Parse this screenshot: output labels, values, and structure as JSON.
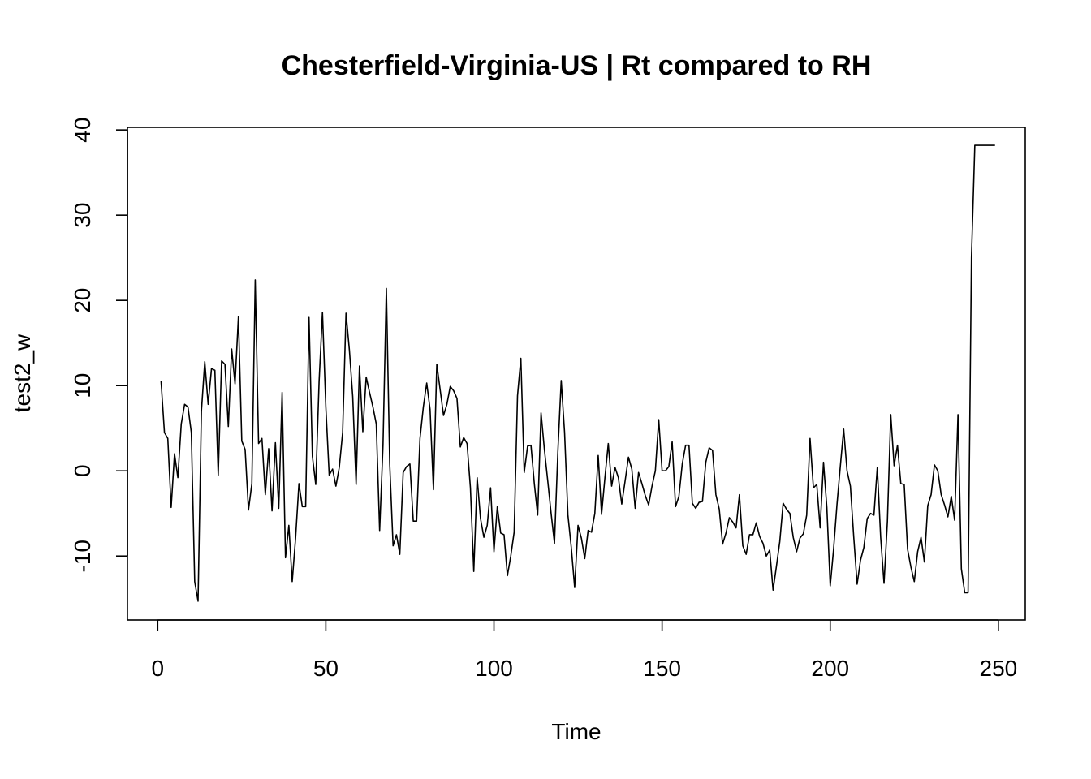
{
  "chart_data": {
    "type": "line",
    "title": "Chesterfield-Virginia-US | Rt compared to RH",
    "xlabel": "Time",
    "ylabel": "test2_w",
    "xlim": [
      -9,
      258
    ],
    "ylim": [
      -17.5,
      40.3
    ],
    "x_ticks": [
      0,
      50,
      100,
      150,
      200,
      250
    ],
    "x_tick_labels": [
      "0",
      "50",
      "100",
      "150",
      "200",
      "250"
    ],
    "y_ticks": [
      -10,
      0,
      10,
      20,
      30,
      40
    ],
    "y_tick_labels": [
      "-10",
      "0",
      "10",
      "20",
      "30",
      "40"
    ],
    "grid": false,
    "legend": "none",
    "series": [
      {
        "x_start": 1,
        "values": [
          10.5,
          4.5,
          3.8,
          -4.3,
          2.0,
          -0.8,
          5.5,
          7.8,
          7.5,
          4.5,
          -13.0,
          -15.3,
          7.0,
          12.8,
          7.8,
          12.0,
          11.8,
          -0.5,
          12.9,
          12.5,
          5.2,
          14.3,
          10.2,
          18.1,
          3.5,
          2.5,
          -4.6,
          -1.5,
          22.4,
          3.2,
          3.8,
          -2.8,
          2.6,
          -4.7,
          3.3,
          -4.4,
          9.2,
          -10.2,
          -6.4,
          -13.0,
          -7.9,
          -1.5,
          -4.2,
          -4.2,
          18.0,
          1.7,
          -1.6,
          10.5,
          18.6,
          7.5,
          -0.5,
          0.2,
          -1.8,
          0.4,
          4.5,
          18.5,
          14.2,
          8.7,
          -1.6,
          12.3,
          4.6,
          11.0,
          9.2,
          7.5,
          5.5,
          -7.0,
          3.0,
          21.4,
          0.8,
          -8.8,
          -7.5,
          -9.8,
          -0.2,
          0.5,
          0.8,
          -5.9,
          -5.9,
          3.8,
          7.5,
          10.3,
          7.2,
          -2.2,
          12.5,
          9.5,
          6.5,
          7.8,
          9.9,
          9.4,
          8.5,
          2.8,
          3.9,
          3.2,
          -2.0,
          -11.8,
          -0.8,
          -5.6,
          -7.8,
          -6.4,
          -2.0,
          -9.5,
          -4.2,
          -7.3,
          -7.5,
          -12.3,
          -10.0,
          -7.2,
          8.8,
          13.2,
          -0.2,
          2.9,
          3.0,
          -1.5,
          -5.2,
          6.8,
          2.5,
          -1.2,
          -5.0,
          -8.5,
          2.2,
          10.6,
          4.5,
          -5.2,
          -9.0,
          -13.7,
          -6.4,
          -7.9,
          -10.3,
          -7.0,
          -7.2,
          -5.0,
          1.8,
          -5.1,
          -0.8,
          3.2,
          -1.8,
          0.4,
          -0.8,
          -3.9,
          -1.2,
          1.6,
          0.2,
          -4.4,
          -0.2,
          -1.5,
          -2.9,
          -4.0,
          -1.8,
          0.0,
          6.0,
          0.0,
          0.0,
          0.5,
          3.4,
          -4.2,
          -3.0,
          0.8,
          3.0,
          3.0,
          -3.8,
          -4.4,
          -3.7,
          -3.6,
          1.0,
          2.7,
          2.4,
          -2.8,
          -4.5,
          -8.6,
          -7.3,
          -5.5,
          -6.0,
          -6.7,
          -2.8,
          -8.8,
          -9.8,
          -7.5,
          -7.5,
          -6.1,
          -7.7,
          -8.5,
          -10.0,
          -9.3,
          -14.0,
          -11.2,
          -8.3,
          -3.8,
          -4.5,
          -5.0,
          -7.8,
          -9.5,
          -7.9,
          -7.4,
          -5.2,
          3.8,
          -2.0,
          -1.6,
          -6.7,
          1.0,
          -4.3,
          -13.5,
          -9.2,
          -4.0,
          0.5,
          4.9,
          0.0,
          -1.8,
          -7.8,
          -13.3,
          -10.5,
          -9.0,
          -5.6,
          -5.0,
          -5.2,
          0.4,
          -7.8,
          -13.2,
          -6.0,
          6.6,
          0.6,
          3.0,
          -1.5,
          -1.6,
          -9.2,
          -11.3,
          -13.0,
          -9.5,
          -7.8,
          -10.7,
          -4.1,
          -2.8,
          0.7,
          0.0,
          -2.8,
          -4.0,
          -5.4,
          -3.0,
          -5.8,
          6.6,
          -11.5,
          -14.3,
          -14.3,
          25.0,
          38.2,
          38.2,
          38.2,
          38.2,
          38.2,
          38.2,
          38.2
        ]
      }
    ]
  }
}
